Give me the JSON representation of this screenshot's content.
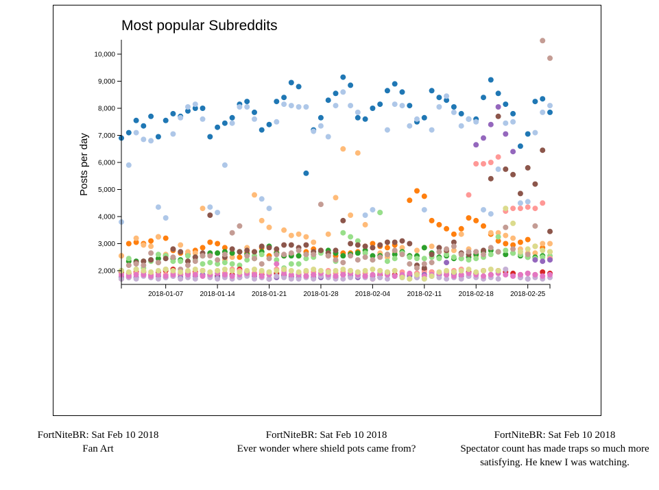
{
  "chart_data": {
    "type": "scatter",
    "title": "Most popular Subreddits",
    "ylabel": "Posts per day",
    "xlabel": "",
    "ylim": [
      1600,
      10700
    ],
    "yticks": [
      2000,
      3000,
      4000,
      5000,
      6000,
      7000,
      8000,
      9000,
      10000
    ],
    "ytick_labels": [
      "2,000",
      "3,000",
      "4,000",
      "5,000",
      "6,000",
      "7,000",
      "8,000",
      "9,000",
      "10,000"
    ],
    "xticks": [
      6,
      13,
      20,
      27,
      34,
      41,
      48,
      55
    ],
    "xtick_labels": [
      "2018-01-07",
      "2018-01-14",
      "2018-01-21",
      "2018-01-28",
      "2018-02-04",
      "2018-02-11",
      "2018-02-18",
      "2018-02-25"
    ],
    "x_start": "2018-01-01",
    "x_end": "2018-02-28",
    "series": [
      {
        "color": "#1f77b4",
        "values": [
          6900,
          7100,
          7550,
          7350,
          7700,
          6950,
          7550,
          7800,
          7700,
          7900,
          8000,
          8000,
          6950,
          7300,
          7450,
          7650,
          8150,
          8250,
          7850,
          7200,
          7400,
          8250,
          8400,
          8950,
          8800,
          5600,
          7200,
          7650,
          8300,
          8550,
          9150,
          8850,
          7650,
          7600,
          8000,
          8150,
          8650,
          8900,
          8600,
          8100,
          7500,
          7650,
          8650,
          8400,
          8300,
          8050,
          7800,
          7600,
          7600,
          8400,
          9050,
          8550,
          8150,
          7800,
          6600,
          7050,
          8250,
          8350,
          7850
        ]
      },
      {
        "color": "#aec7e8",
        "values": [
          3800,
          5900,
          7100,
          6850,
          6800,
          4350,
          3950,
          7050,
          7650,
          8050,
          8150,
          7600,
          4350,
          4150,
          5900,
          7450,
          8050,
          8050,
          7600,
          4650,
          4300,
          7500,
          8150,
          8100,
          8050,
          8050,
          7150,
          7350,
          6950,
          8100,
          8600,
          8100,
          7850,
          4050,
          4250,
          4150,
          7200,
          8150,
          8100,
          7350,
          7600,
          4250,
          7200,
          8050,
          8450,
          7850,
          7350,
          7600,
          7500,
          4250,
          4100,
          5750,
          7450,
          7500,
          4500,
          4550,
          7100,
          7850,
          8100
        ]
      },
      {
        "color": "#ff7f0e",
        "values": [
          2550,
          3000,
          3050,
          3000,
          3100,
          3250,
          3200,
          2750,
          2650,
          2600,
          2750,
          2850,
          3050,
          3000,
          2850,
          2650,
          2500,
          2650,
          2700,
          2850,
          2550,
          2650,
          2550,
          2600,
          2550,
          2700,
          2800,
          2750,
          2550,
          2550,
          2650,
          2650,
          2700,
          2900,
          3000,
          2900,
          2850,
          2950,
          2700,
          4600,
          4950,
          4750,
          3850,
          3700,
          3550,
          3350,
          3550,
          3950,
          3850,
          3650,
          3350,
          3100,
          3000,
          2950,
          3050,
          3150,
          2900,
          2850,
          2700
        ]
      },
      {
        "color": "#ffbb78",
        "values": [
          2550,
          2350,
          3200,
          2950,
          2900,
          3250,
          2600,
          2800,
          2950,
          2700,
          2650,
          4300,
          2600,
          2650,
          2400,
          2500,
          2700,
          2850,
          4800,
          3850,
          3600,
          2700,
          3500,
          3300,
          3350,
          3250,
          3050,
          2750,
          3350,
          4700,
          6500,
          4050,
          6350,
          3700,
          2850,
          2650,
          2500,
          2700,
          2850,
          2550,
          2750,
          2850,
          2900,
          2850,
          2700,
          2750,
          3350,
          2800,
          2550,
          2700,
          3400,
          3400,
          3300,
          3200,
          2800,
          2650,
          2650,
          3000,
          3000
        ]
      },
      {
        "color": "#2ca02c",
        "values": [
          2000,
          2350,
          2350,
          2350,
          2400,
          2450,
          2550,
          2450,
          2400,
          2350,
          2500,
          2550,
          2650,
          2650,
          2700,
          2650,
          2700,
          2600,
          2450,
          2700,
          2900,
          2650,
          2550,
          2550,
          2550,
          2600,
          2600,
          2700,
          2750,
          2650,
          2550,
          2600,
          2650,
          2750,
          2550,
          2550,
          2600,
          2600,
          2700,
          2550,
          2550,
          2850,
          2650,
          2500,
          2550,
          2450,
          2450,
          2500,
          2600,
          2700,
          2750,
          2700,
          2600,
          2650,
          2550,
          2500,
          2500,
          2550,
          2450
        ]
      },
      {
        "color": "#98df8a",
        "values": [
          1950,
          2450,
          2050,
          2100,
          2350,
          2600,
          2550,
          2350,
          2350,
          2550,
          2400,
          2250,
          2300,
          2250,
          2300,
          2250,
          2200,
          2400,
          2550,
          2600,
          1950,
          2400,
          2100,
          2250,
          2250,
          2450,
          2500,
          2650,
          2650,
          2350,
          3400,
          3250,
          3100,
          2650,
          2400,
          4150,
          2350,
          2450,
          2650,
          2500,
          2450,
          2450,
          2500,
          2450,
          2600,
          2500,
          2450,
          2400,
          2450,
          2500,
          2600,
          3250,
          2750,
          2650,
          2600,
          2500,
          2450,
          2500,
          2550
        ]
      },
      {
        "color": "#d62728",
        "values": [
          1950,
          1900,
          1950,
          1950,
          1850,
          1950,
          2000,
          2050,
          1850,
          1900,
          1950,
          2000,
          1850,
          1800,
          1900,
          1850,
          2050,
          1950,
          1900,
          1850,
          1700,
          1900,
          1850,
          1800,
          1850,
          1800,
          1850,
          1800,
          1850,
          1800,
          1850,
          1900,
          1850,
          1800,
          1700,
          1850,
          1900,
          1850,
          1800,
          1850,
          1900,
          2050,
          1950,
          1900,
          1850,
          1900,
          1850,
          1950,
          1900,
          2000,
          1850,
          2000,
          1950,
          1900,
          1850,
          1900,
          1850,
          1950,
          1900
        ]
      },
      {
        "color": "#ff9896",
        "values": [
          1800,
          1850,
          1900,
          1950,
          1850,
          1800,
          1850,
          1900,
          1850,
          1950,
          1900,
          2000,
          1850,
          2000,
          1900,
          2050,
          2000,
          1900,
          1900,
          1950,
          1900,
          2050,
          2000,
          1850,
          1900,
          1950,
          1950,
          1900,
          2000,
          1900,
          1950,
          2000,
          1950,
          1900,
          1850,
          2000,
          1950,
          2000,
          1950,
          1850,
          1900,
          1950,
          1950,
          1900,
          1950,
          2000,
          2050,
          4800,
          5950,
          5950,
          6000,
          6200,
          4200,
          4300,
          4300,
          4350,
          4300,
          4500,
          2450
        ]
      },
      {
        "color": "#8c564b",
        "values": [
          1700,
          1750,
          2300,
          2350,
          2400,
          2300,
          2450,
          2800,
          2700,
          2350,
          2500,
          2650,
          4050,
          1800,
          2500,
          2800,
          2700,
          2750,
          2700,
          2900,
          2850,
          2800,
          2950,
          2950,
          2850,
          2950,
          2700,
          2750,
          2650,
          2750,
          3850,
          3000,
          2950,
          2900,
          2850,
          2950,
          3050,
          3050,
          3100,
          3000,
          2200,
          2100,
          2600,
          2850,
          2750,
          3050,
          2650,
          2600,
          2700,
          2750,
          5400,
          7700,
          5750,
          5550,
          4850,
          5800,
          5200,
          6450,
          3450
        ]
      },
      {
        "color": "#c49c94",
        "values": [
          1750,
          2200,
          2250,
          2200,
          2650,
          2300,
          2050,
          2500,
          2050,
          2200,
          2350,
          2550,
          2550,
          2400,
          2600,
          3400,
          3650,
          2550,
          2450,
          2250,
          2450,
          2600,
          2600,
          2650,
          2750,
          2600,
          2600,
          4450,
          2550,
          2400,
          2300,
          2550,
          2400,
          2500,
          2400,
          2500,
          2600,
          2750,
          2600,
          2250,
          2100,
          2250,
          2300,
          2700,
          2800,
          2900,
          2600,
          2700,
          2700,
          2600,
          2850,
          2700,
          3600,
          2800,
          2700,
          2600,
          3650,
          10500,
          9850
        ]
      },
      {
        "color": "#9467bd",
        "values": [
          1750,
          1800,
          1750,
          1850,
          1750,
          1800,
          1750,
          1800,
          1750,
          1850,
          1800,
          1850,
          1800,
          1750,
          1800,
          1800,
          1750,
          1850,
          1800,
          1750,
          1700,
          1750,
          1800,
          1750,
          1750,
          1800,
          1750,
          1750,
          1800,
          1750,
          1850,
          1800,
          1750,
          1800,
          1800,
          1750,
          1850,
          1800,
          1750,
          1800,
          1750,
          1850,
          1800,
          1850,
          2300,
          1850,
          1800,
          1800,
          6650,
          6900,
          7400,
          8050,
          7050,
          6400,
          1750,
          1700,
          2400,
          2350,
          2400
        ]
      },
      {
        "color": "#c5b0d5",
        "values": [
          1700,
          1750,
          1700,
          1800,
          1750,
          1700,
          1750,
          1800,
          1700,
          1750,
          1700,
          1800,
          1750,
          1700,
          1750,
          1700,
          1750,
          1800,
          1700,
          1750,
          1700,
          1800,
          1750,
          1700,
          1700,
          1750,
          1700,
          1800,
          1750,
          1700,
          1700,
          1750,
          1800,
          1750,
          1700,
          1750,
          1700,
          1800,
          1750,
          1700,
          1750,
          1700,
          1800,
          1750,
          1700,
          1750,
          1700,
          1800,
          1750,
          1700,
          1750,
          1700,
          2050,
          1800,
          1750,
          1700,
          1750,
          1700,
          1750
        ]
      },
      {
        "color": "#e377c2",
        "values": [
          1850,
          1800,
          1850,
          1850,
          1800,
          1850,
          1800,
          1850,
          1900,
          1850,
          1850,
          1800,
          1850,
          1900,
          1850,
          1800,
          1850,
          1900,
          1850,
          1800,
          1850,
          2250,
          1900,
          1850,
          1850,
          1800,
          1850,
          1900,
          1850,
          1800,
          1850,
          1900,
          1850,
          1800,
          1850,
          1900,
          1850,
          1800,
          1850,
          1900,
          1850,
          1800,
          1850,
          1900,
          1850,
          1800,
          1850,
          1900,
          1850,
          1800,
          1850,
          1900,
          1850,
          1800,
          1850,
          1900,
          1850,
          1800,
          1850
        ]
      },
      {
        "color": "#dbdb8d",
        "values": [
          2000,
          1950,
          2050,
          2000,
          1950,
          2000,
          2050,
          2000,
          1950,
          2000,
          2050,
          2000,
          1950,
          2000,
          2050,
          2000,
          1950,
          2000,
          2050,
          2000,
          1950,
          2000,
          2050,
          2000,
          1950,
          2000,
          2050,
          2000,
          1950,
          2000,
          2050,
          2000,
          1950,
          2000,
          2050,
          2000,
          1950,
          2000,
          1750,
          1700,
          1850,
          1700,
          1800,
          1950,
          2000,
          1950,
          2000,
          2050,
          1950,
          2000,
          2050,
          2000,
          4300,
          3750,
          2700,
          2800,
          2900,
          2750,
          2700
        ]
      }
    ]
  },
  "captions": [
    {
      "date": "FortNiteBR: Sat Feb 10 2018",
      "title": "Fan Art"
    },
    {
      "date": "FortNiteBR: Sat Feb 10 2018",
      "title": "Ever wonder where shield pots came from?"
    },
    {
      "date": "FortNiteBR: Sat Feb 10 2018",
      "title": "Spectator count has made traps so much more satisfying. He knew I was watching."
    }
  ]
}
